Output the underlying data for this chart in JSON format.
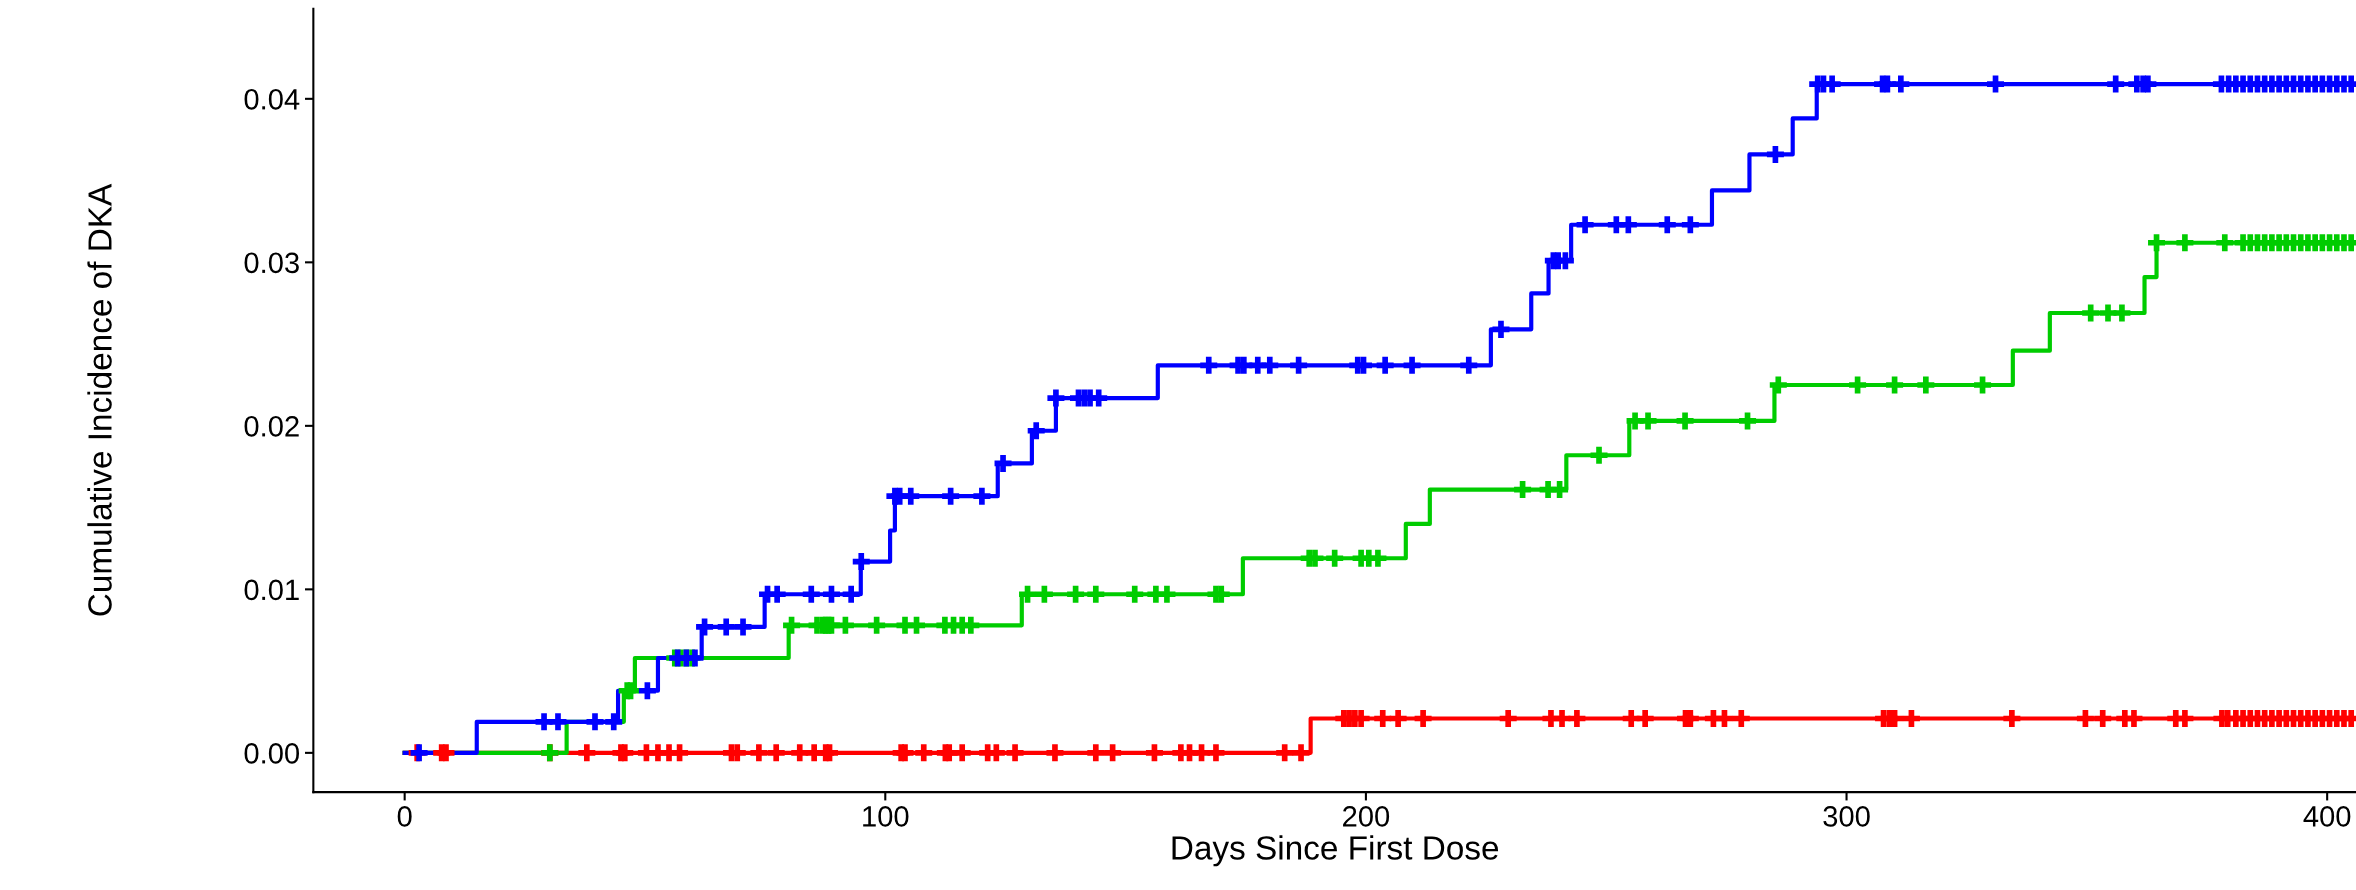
{
  "chart_data": {
    "type": "step",
    "xlabel": "Days Since First Dose",
    "ylabel": "Cumulative Incidence of DKA",
    "xlim": [
      -19,
      406
    ],
    "ylim": [
      -0.0024,
      0.0455
    ],
    "xticks": [
      0,
      100,
      200,
      300,
      400
    ],
    "yticks": [
      {
        "value": 0,
        "label": "0.00"
      },
      {
        "value": 0.01,
        "label": "0.01"
      },
      {
        "value": 0.02,
        "label": "0.02"
      },
      {
        "value": 0.03,
        "label": "0.03"
      },
      {
        "value": 0.04,
        "label": "0.04"
      }
    ],
    "grid": false,
    "legend": false,
    "series": [
      {
        "type": "step",
        "color": "#0000ff",
        "marker": "none",
        "x": [
          0,
          15,
          44.4,
          52.7,
          61.8,
          74.9,
          94.9,
          101,
          102,
          123.4,
          130.5,
          135.5,
          156.7,
          226,
          234.4,
          238,
          242.7,
          272,
          279.8,
          288.8,
          293.8,
          405
        ],
        "values": [
          0,
          0.0019,
          0.0038,
          0.0058,
          0.0077,
          0.0097,
          0.0117,
          0.0136,
          0.0157,
          0.0177,
          0.0197,
          0.0217,
          0.0237,
          0.0259,
          0.0281,
          0.0301,
          0.0323,
          0.0344,
          0.0366,
          0.0388,
          0.0409,
          0.0409
        ]
      },
      {
        "type": "step",
        "color": "#00cc00",
        "marker": "none",
        "x": [
          0,
          33.7,
          45.6,
          47.9,
          79.9,
          128.4,
          174.4,
          208.3,
          213.3,
          241.7,
          254.8,
          285,
          334.6,
          342.3,
          362,
          364.5,
          405
        ],
        "values": [
          0,
          0.0019,
          0.0038,
          0.0058,
          0.0078,
          0.0097,
          0.0119,
          0.014,
          0.0161,
          0.0182,
          0.0203,
          0.0225,
          0.0246,
          0.0269,
          0.0291,
          0.0312,
          0.0312
        ]
      },
      {
        "type": "step",
        "color": "#ff0000",
        "marker": "none",
        "x": [
          0,
          188.5,
          405
        ],
        "values": [
          0,
          0.0021,
          0.0021
        ]
      },
      {
        "type": "scatter",
        "color": "#0000ff",
        "marker": "cross",
        "x": [
          3,
          29,
          31.9,
          39.6,
          43.5,
          50.5,
          56.8,
          58.6,
          60.4,
          62.4,
          66.9,
          70.4,
          75.5,
          77.5,
          84.6,
          88.8,
          92.9,
          95,
          102,
          103,
          105.3,
          113.6,
          120.1,
          124.5,
          131.4,
          135.5,
          140.2,
          141.4,
          142.6,
          144.4,
          167.3,
          173.4,
          174.6,
          177.5,
          180,
          186,
          198.3,
          199.5,
          204,
          209.6,
          221.4,
          228.1,
          239,
          240,
          241.5,
          245.6,
          252.1,
          254.6,
          262.7,
          267.5,
          285.2,
          294,
          295.2,
          297,
          307.5,
          308.5,
          311.3,
          331,
          356,
          360.4,
          361.7,
          362.7,
          378,
          379.5,
          381,
          382.5,
          384,
          385.5,
          387,
          388.5,
          390,
          391.5,
          393,
          394.5,
          396,
          397.5,
          399,
          400.5,
          402,
          403.5,
          405
        ],
        "values": [
          0,
          0.0019,
          0.0019,
          0.0019,
          0.0019,
          0.0038,
          0.0058,
          0.0058,
          0.0058,
          0.0077,
          0.0077,
          0.0077,
          0.0097,
          0.0097,
          0.0097,
          0.0097,
          0.0097,
          0.0117,
          0.0157,
          0.0157,
          0.0157,
          0.0157,
          0.0157,
          0.0177,
          0.0197,
          0.0217,
          0.0217,
          0.0217,
          0.0217,
          0.0217,
          0.0237,
          0.0237,
          0.0237,
          0.0237,
          0.0237,
          0.0237,
          0.0237,
          0.0237,
          0.0237,
          0.0237,
          0.0237,
          0.0259,
          0.0301,
          0.0301,
          0.0301,
          0.0323,
          0.0323,
          0.0323,
          0.0323,
          0.0323,
          0.0366,
          0.0409,
          0.0409,
          0.0409,
          0.0409,
          0.0409,
          0.0409,
          0.0409,
          0.0409,
          0.0409,
          0.0409,
          0.0409,
          0.0409,
          0.0409,
          0.0409,
          0.0409,
          0.0409,
          0.0409,
          0.0409,
          0.0409,
          0.0409,
          0.0409,
          0.0409,
          0.0409,
          0.0409,
          0.0409,
          0.0409,
          0.0409,
          0.0409,
          0.0409,
          0.0409
        ]
      },
      {
        "type": "scatter",
        "color": "#00cc00",
        "marker": "cross",
        "x": [
          30.2,
          46.3,
          47,
          56.2,
          57.4,
          58.6,
          59.8,
          80.5,
          85.8,
          87,
          87.6,
          88.2,
          88.8,
          91.7,
          98.2,
          104.1,
          106.5,
          112.4,
          114.2,
          116,
          117.8,
          129.6,
          133.1,
          139.6,
          143.8,
          151.9,
          156.3,
          158.6,
          168.8,
          169.9,
          188.2,
          189.4,
          193.5,
          199,
          200.6,
          202.5,
          232.6,
          237.9,
          240.3,
          248.5,
          256,
          258.7,
          266.4,
          279.4,
          285.8,
          302.3,
          310,
          316.5,
          328.3,
          350.8,
          354.4,
          357.3,
          364.5,
          370.4,
          378.7,
          382.5,
          384,
          385.5,
          387,
          388.5,
          390,
          391.5,
          393,
          394.5,
          396,
          397.5,
          399,
          400.5,
          402,
          403.5,
          405
        ],
        "values": [
          0,
          0.0038,
          0.0038,
          0.0058,
          0.0058,
          0.0058,
          0.0058,
          0.0078,
          0.0078,
          0.0078,
          0.0078,
          0.0078,
          0.0078,
          0.0078,
          0.0078,
          0.0078,
          0.0078,
          0.0078,
          0.0078,
          0.0078,
          0.0078,
          0.0097,
          0.0097,
          0.0097,
          0.0097,
          0.0097,
          0.0097,
          0.0097,
          0.0097,
          0.0097,
          0.0119,
          0.0119,
          0.0119,
          0.0119,
          0.0119,
          0.0119,
          0.0161,
          0.0161,
          0.0161,
          0.0182,
          0.0203,
          0.0203,
          0.0203,
          0.0203,
          0.0225,
          0.0225,
          0.0225,
          0.0225,
          0.0225,
          0.0269,
          0.0269,
          0.0269,
          0.0312,
          0.0312,
          0.0312,
          0.0312,
          0.0312,
          0.0312,
          0.0312,
          0.0312,
          0.0312,
          0.0312,
          0.0312,
          0.0312,
          0.0312,
          0.0312,
          0.0312,
          0.0312,
          0.0312,
          0.0312,
          0.0312
        ]
      },
      {
        "type": "scatter",
        "color": "#ff0000",
        "marker": "cross",
        "x": [
          2.6,
          7.7,
          8.6,
          30.2,
          37.9,
          45,
          45.8,
          50.3,
          52.7,
          55,
          57.2,
          68,
          69.2,
          73.7,
          77.3,
          82.2,
          85.2,
          87.6,
          88.4,
          103.3,
          104.1,
          108,
          112.5,
          113.3,
          116,
          121.3,
          123.1,
          127,
          135.3,
          143.8,
          147.3,
          156,
          161.5,
          163.3,
          165.8,
          168.8,
          183.1,
          186.5,
          195.4,
          196.5,
          197.7,
          199,
          203.5,
          206.7,
          211.9,
          229.6,
          238.5,
          240.8,
          243.9,
          255.2,
          258.1,
          266.5,
          267.5,
          272.3,
          274.6,
          278.1,
          307.7,
          308.9,
          310,
          313.5,
          334.4,
          349.7,
          353.3,
          357.9,
          359.8,
          368.5,
          370.4,
          378.1,
          379.3,
          381,
          382.5,
          384,
          385.5,
          387,
          388.5,
          390,
          391.5,
          393,
          394.5,
          396,
          397.5,
          399,
          400.5,
          402,
          403.5,
          405
        ],
        "values": [
          0,
          0,
          0,
          0,
          0,
          0,
          0,
          0,
          0,
          0,
          0,
          0,
          0,
          0,
          0,
          0,
          0,
          0,
          0,
          0,
          0,
          0,
          0,
          0,
          0,
          0,
          0,
          0,
          0,
          0,
          0,
          0,
          0,
          0,
          0,
          0,
          0,
          0,
          0.0021,
          0.0021,
          0.0021,
          0.0021,
          0.0021,
          0.0021,
          0.0021,
          0.0021,
          0.0021,
          0.0021,
          0.0021,
          0.0021,
          0.0021,
          0.0021,
          0.0021,
          0.0021,
          0.0021,
          0.0021,
          0.0021,
          0.0021,
          0.0021,
          0.0021,
          0.0021,
          0.0021,
          0.0021,
          0.0021,
          0.0021,
          0.0021,
          0.0021,
          0.0021,
          0.0021,
          0.0021,
          0.0021,
          0.0021,
          0.0021,
          0.0021,
          0.0021,
          0.0021,
          0.0021,
          0.0021,
          0.0021,
          0.0021,
          0.0021,
          0.0021,
          0.0021,
          0.0021,
          0.0021,
          0.0021
        ]
      }
    ]
  }
}
